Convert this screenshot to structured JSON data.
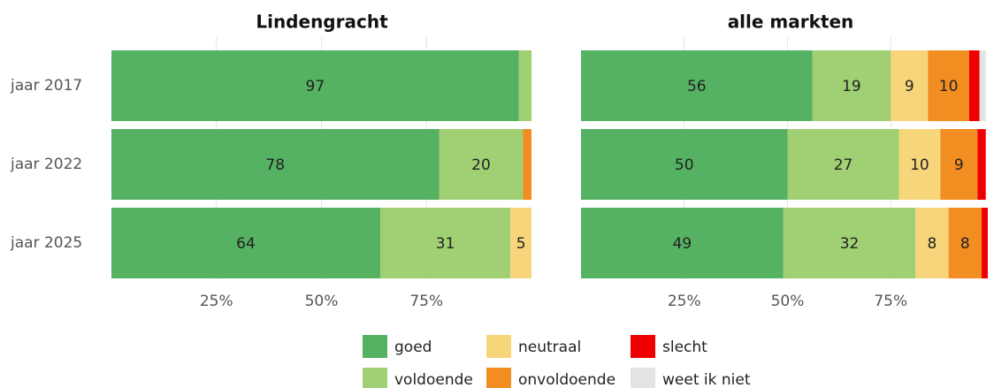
{
  "chart_data": [
    {
      "type": "bar",
      "orientation": "horizontal",
      "stacked": true,
      "title": "Lindengracht",
      "categories": [
        "jaar 2017",
        "jaar 2022",
        "jaar 2025"
      ],
      "series": [
        {
          "name": "goed",
          "color": "#55b263",
          "values": [
            97,
            78,
            64
          ]
        },
        {
          "name": "voldoende",
          "color": "#a0cf74",
          "values": [
            3,
            20,
            31
          ]
        },
        {
          "name": "neutraal",
          "color": "#f7d57a",
          "values": [
            0,
            0,
            5
          ]
        },
        {
          "name": "onvoldoende",
          "color": "#f28d22",
          "values": [
            0,
            2,
            0
          ]
        }
      ],
      "xlim": [
        0,
        100
      ],
      "xticks": [
        {
          "value": 25,
          "label": "25%"
        },
        {
          "value": 50,
          "label": "50%"
        },
        {
          "value": 75,
          "label": "75%"
        }
      ],
      "grid": true
    },
    {
      "type": "bar",
      "orientation": "horizontal",
      "stacked": true,
      "title": "alle markten",
      "series": [
        {
          "name": "goed",
          "color": "#55b263",
          "values": [
            56,
            50,
            49
          ]
        },
        {
          "name": "voldoende",
          "color": "#a0cf74",
          "values": [
            19,
            27,
            32
          ]
        },
        {
          "name": "neutraal",
          "color": "#f7d57a",
          "values": [
            9,
            10,
            8
          ]
        },
        {
          "name": "onvoldoende",
          "color": "#f28d22",
          "values": [
            10,
            9,
            8
          ]
        },
        {
          "name": "slecht",
          "color": "#ee0000",
          "values": [
            2.5,
            2,
            1.5
          ]
        },
        {
          "name": "weet ik niet",
          "color": "#e3e3e3",
          "values": [
            1.5,
            0,
            0
          ]
        }
      ],
      "xlim": [
        0,
        100
      ],
      "xticks": [
        {
          "value": 25,
          "label": "25%"
        },
        {
          "value": 50,
          "label": "50%"
        },
        {
          "value": 75,
          "label": "75%"
        }
      ],
      "grid": true
    }
  ]
}
